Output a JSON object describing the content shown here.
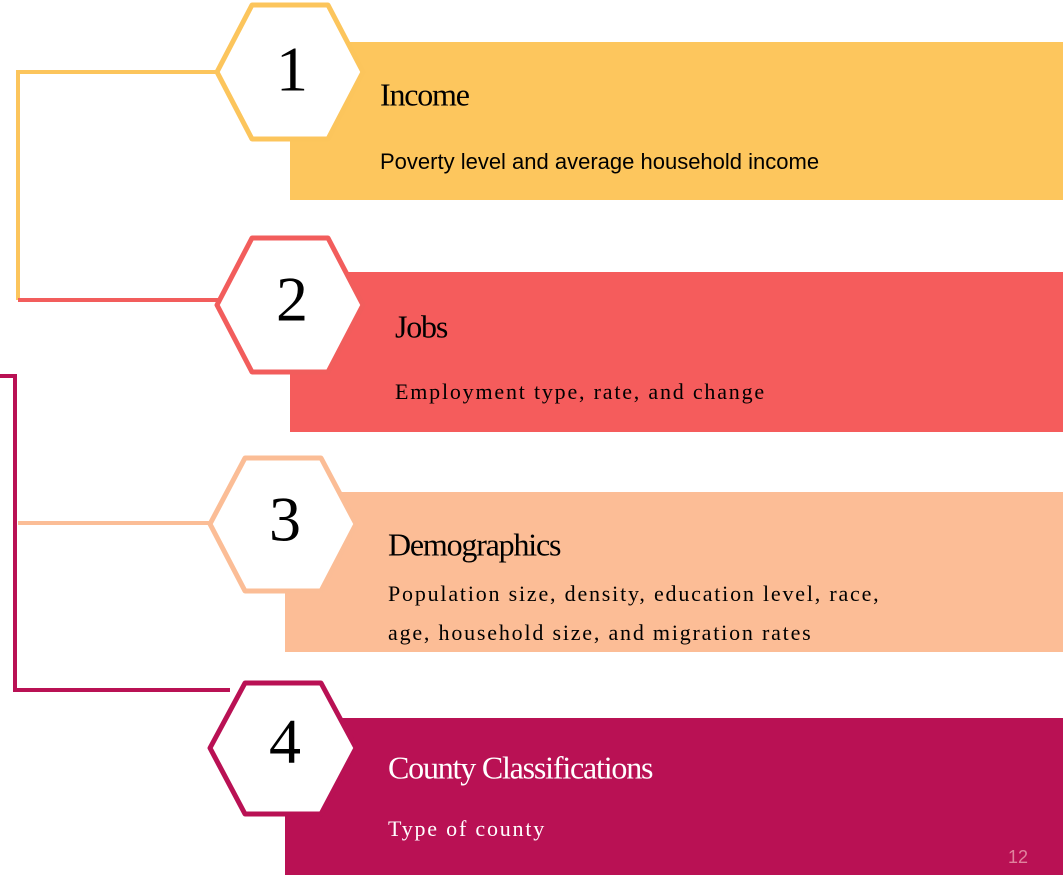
{
  "items": [
    {
      "number": "1",
      "title": "Income",
      "description": [
        "Poverty level and average household income"
      ]
    },
    {
      "number": "2",
      "title": "Jobs",
      "description": [
        "Employment type, rate, and change"
      ]
    },
    {
      "number": "3",
      "title": "Demographics",
      "description": [
        "Population size, density, education level, race,",
        "age, household size, and migration rates"
      ]
    },
    {
      "number": "4",
      "title": "County Classifications",
      "description": [
        "Type of county"
      ]
    }
  ],
  "page_number": "12"
}
